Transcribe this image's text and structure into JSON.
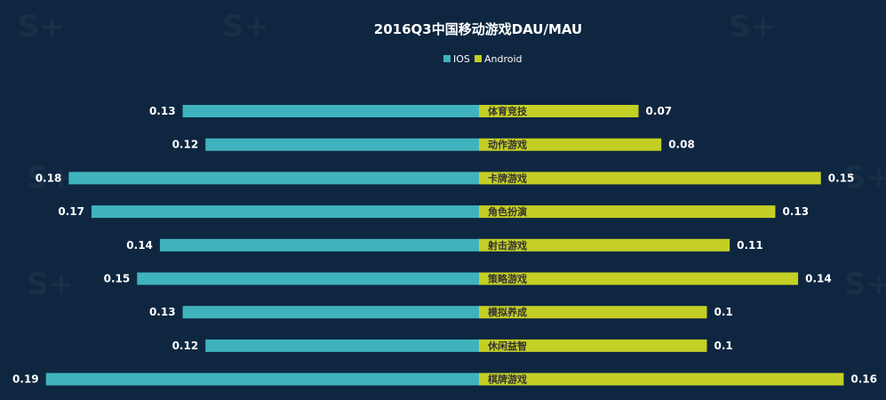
{
  "chart_data": {
    "type": "bar",
    "title": "2016Q3中国移动游戏DAU/MAU",
    "categories": [
      "体育竞技",
      "动作游戏",
      "卡牌游戏",
      "角色扮演",
      "射击游戏",
      "策略游戏",
      "模拟养成",
      "休闲益智",
      "棋牌游戏"
    ],
    "series": [
      {
        "name": "IOS",
        "color": "#3fb3bd",
        "values": [
          0.13,
          0.12,
          0.18,
          0.17,
          0.14,
          0.15,
          0.13,
          0.12,
          0.19
        ],
        "labels": [
          "0.13",
          "0.12",
          "0.18",
          "0.17",
          "0.14",
          "0.15",
          "0.13",
          "0.12",
          "0.19"
        ]
      },
      {
        "name": "Android",
        "color": "#c4cf25",
        "values": [
          0.07,
          0.08,
          0.15,
          0.13,
          0.11,
          0.14,
          0.1,
          0.1,
          0.16
        ],
        "labels": [
          "0.07",
          "0.08",
          "0.15",
          "0.13",
          "0.11",
          "0.14",
          "0.1",
          "0.1",
          "0.16"
        ]
      }
    ],
    "layout": "butterfly",
    "legend_position": "top-center",
    "grid": false
  }
}
